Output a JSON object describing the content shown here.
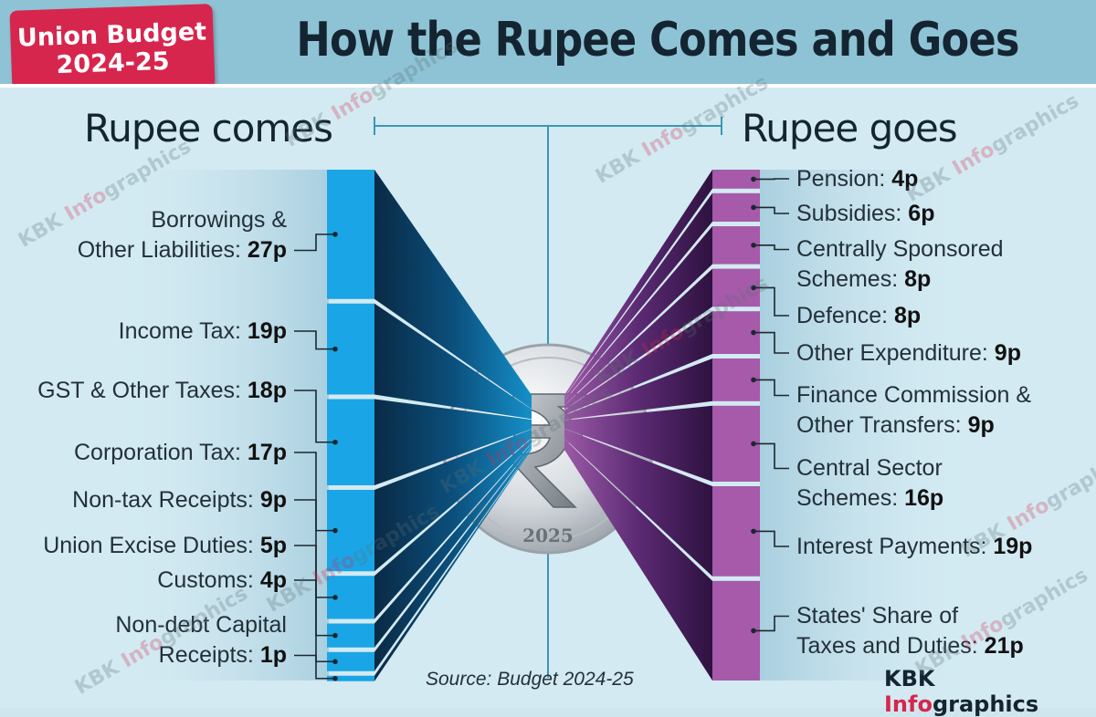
{
  "header": {
    "badge_line1": "Union Budget",
    "badge_line2": "2024-25",
    "title": "How the Rupee Comes and Goes"
  },
  "coin_year": "2025",
  "source": "Source: Budget 2024-25",
  "brand": {
    "part1": "KBK ",
    "part2": "Info",
    "part3": "graphics"
  },
  "watermark": {
    "part1": "KBK ",
    "part2": "Info",
    "part3": "graphics"
  },
  "colors": {
    "comes": "#1aa5e6",
    "goes": "#a65aa9",
    "badge": "#d7264d"
  },
  "chart_data": {
    "type": "bar",
    "unit": "p",
    "comes": {
      "title": "Rupee comes",
      "items": [
        {
          "label_lines": [
            "Borrowings &",
            "Other Liabilities: "
          ],
          "value": 27
        },
        {
          "label_lines": [
            "Income Tax: "
          ],
          "value": 19
        },
        {
          "label_lines": [
            "GST & Other Taxes: "
          ],
          "value": 18
        },
        {
          "label_lines": [
            "Corporation Tax: "
          ],
          "value": 17
        },
        {
          "label_lines": [
            "Non-tax Receipts: "
          ],
          "value": 9
        },
        {
          "label_lines": [
            "Union Excise Duties: "
          ],
          "value": 5
        },
        {
          "label_lines": [
            "Customs: "
          ],
          "value": 4
        },
        {
          "label_lines": [
            "Non-debt Capital",
            "Receipts: "
          ],
          "value": 1
        }
      ]
    },
    "goes": {
      "title": "Rupee goes",
      "items": [
        {
          "label_lines": [
            "Pension: "
          ],
          "value": 4
        },
        {
          "label_lines": [
            "Subsidies: "
          ],
          "value": 6
        },
        {
          "label_lines": [
            "Centrally Sponsored",
            "Schemes: "
          ],
          "value": 8
        },
        {
          "label_lines": [
            "Defence: "
          ],
          "value": 8
        },
        {
          "label_lines": [
            "Other Expenditure: "
          ],
          "value": 9
        },
        {
          "label_lines": [
            "Finance Commission &",
            "Other Transfers: "
          ],
          "value": 9
        },
        {
          "label_lines": [
            "Central Sector",
            "Schemes: "
          ],
          "value": 16
        },
        {
          "label_lines": [
            "Interest Payments: "
          ],
          "value": 19
        },
        {
          "label_lines": [
            "States' Share of",
            "Taxes and Duties: "
          ],
          "value": 21
        }
      ]
    }
  }
}
